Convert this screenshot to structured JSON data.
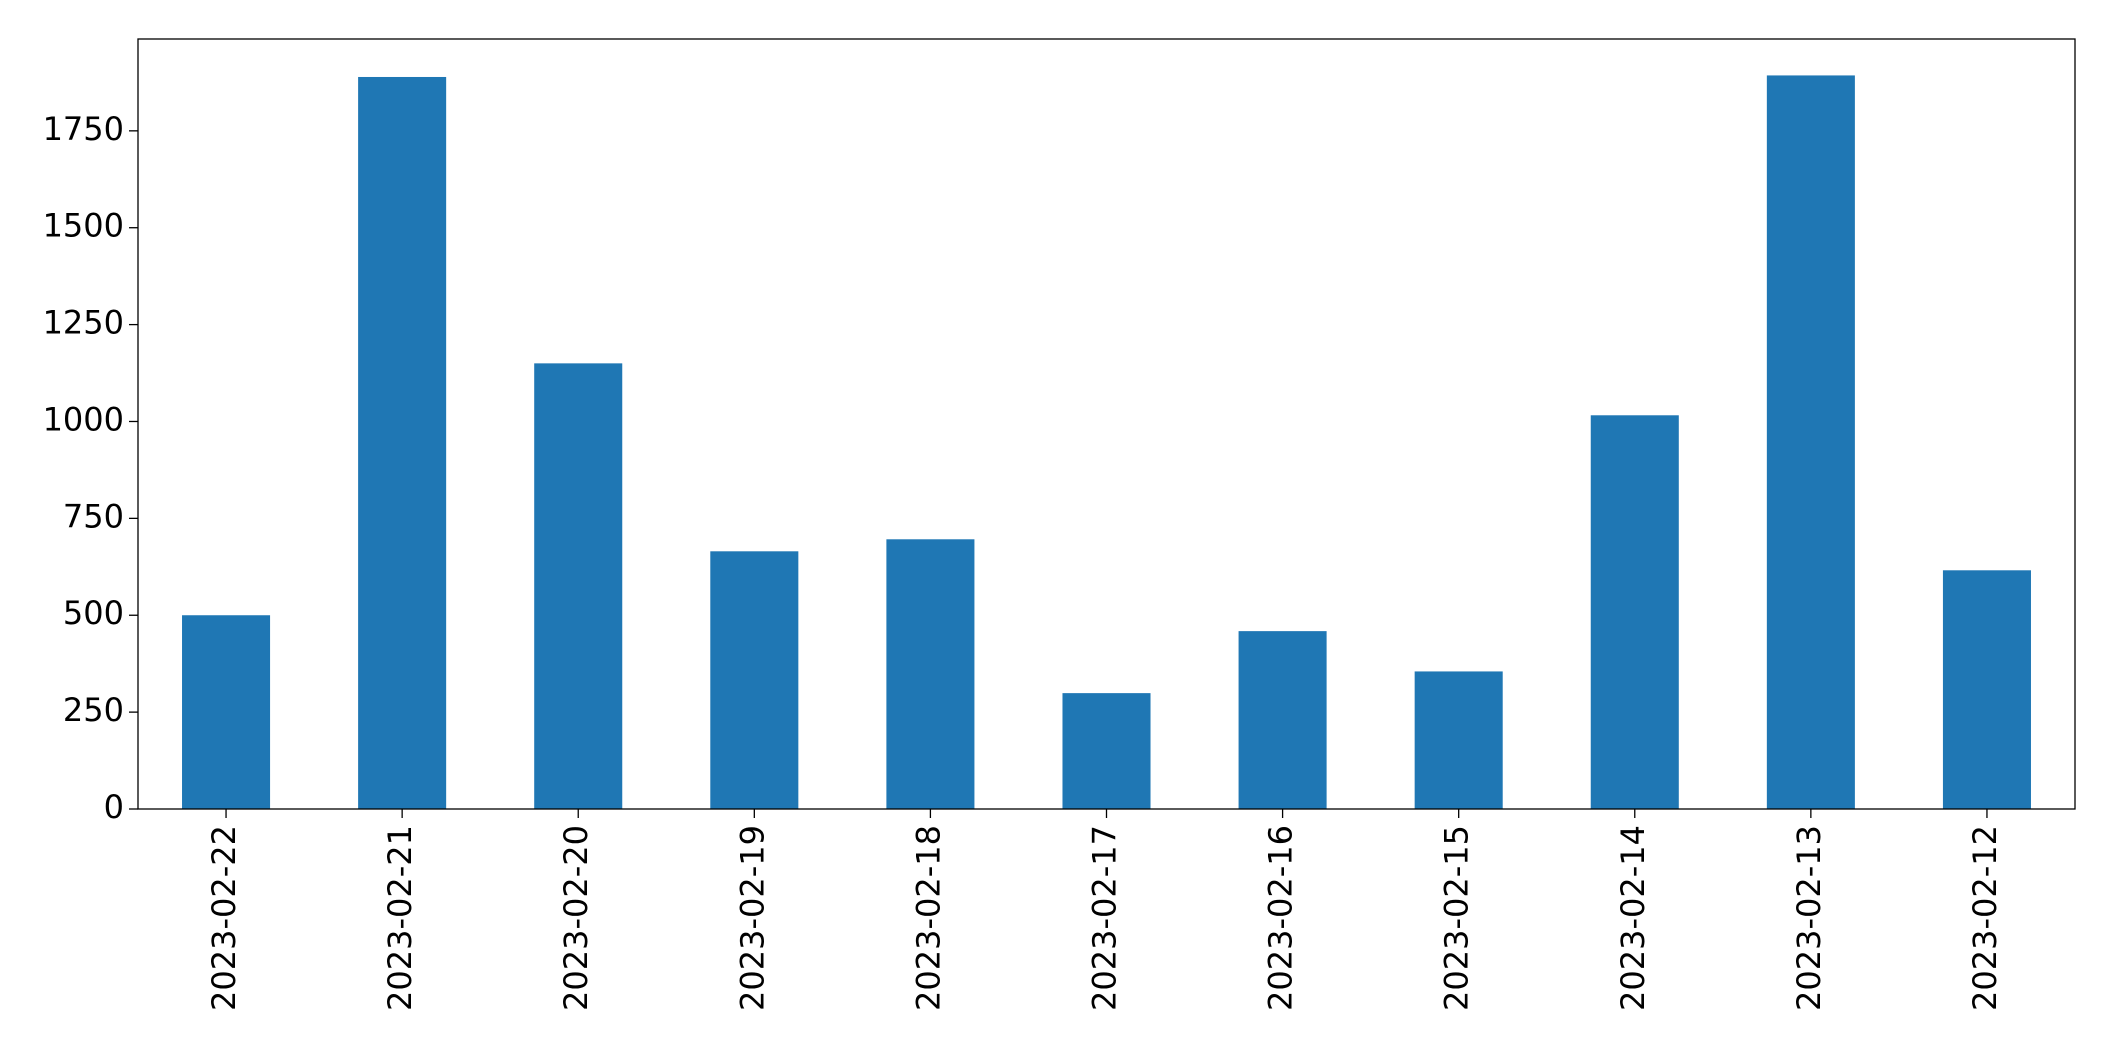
{
  "chart_data": {
    "type": "bar",
    "categories": [
      "2023-02-22",
      "2023-02-21",
      "2023-02-20",
      "2023-02-19",
      "2023-02-18",
      "2023-02-17",
      "2023-02-16",
      "2023-02-15",
      "2023-02-14",
      "2023-02-13",
      "2023-02-12"
    ],
    "values": [
      500,
      1889,
      1150,
      665,
      696,
      299,
      459,
      355,
      1016,
      1893,
      616
    ],
    "color": "#1f77b4",
    "ylim": [
      0,
      1987
    ],
    "yticks": [
      0,
      250,
      500,
      750,
      1000,
      1250,
      1500,
      1750
    ],
    "grid": false
  }
}
